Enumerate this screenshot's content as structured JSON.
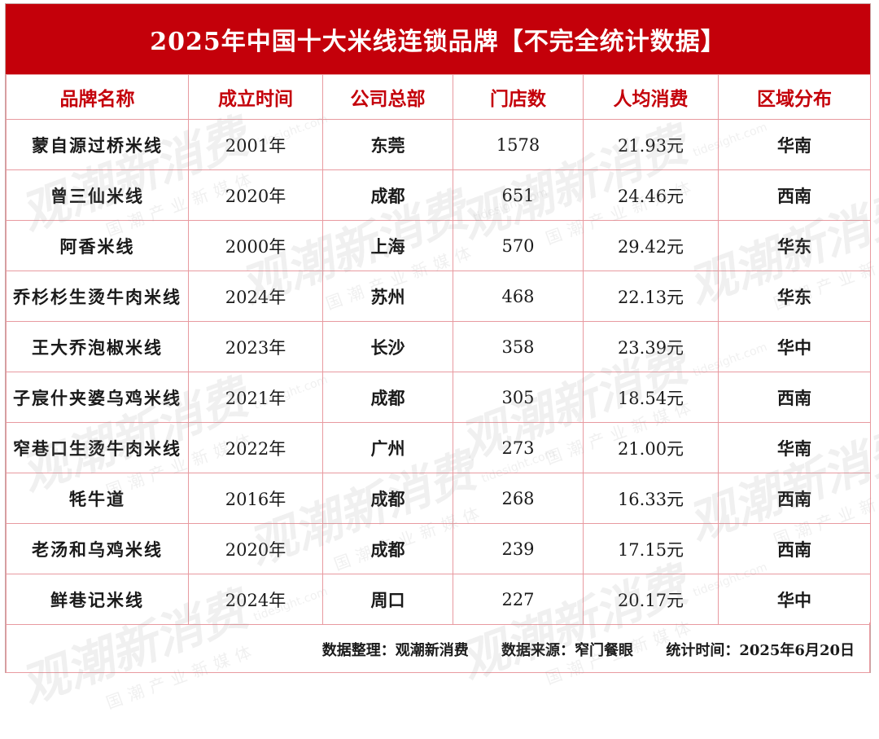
{
  "title": "2025年中国十大米线连锁品牌【不完全统计数据】",
  "columns": [
    "品牌名称",
    "成立时间",
    "公司总部",
    "门店数",
    "人均消费",
    "区域分布"
  ],
  "rows": [
    {
      "brand": "蒙自源过桥米线",
      "founded": "2001年",
      "hq": "东莞",
      "stores": "1578",
      "avg_spend": "21.93元",
      "region": "华南"
    },
    {
      "brand": "曾三仙米线",
      "founded": "2020年",
      "hq": "成都",
      "stores": "651",
      "avg_spend": "24.46元",
      "region": "西南"
    },
    {
      "brand": "阿香米线",
      "founded": "2000年",
      "hq": "上海",
      "stores": "570",
      "avg_spend": "29.42元",
      "region": "华东"
    },
    {
      "brand": "乔杉杉生烫牛肉米线",
      "founded": "2024年",
      "hq": "苏州",
      "stores": "468",
      "avg_spend": "22.13元",
      "region": "华东"
    },
    {
      "brand": "王大乔泡椒米线",
      "founded": "2023年",
      "hq": "长沙",
      "stores": "358",
      "avg_spend": "23.39元",
      "region": "华中"
    },
    {
      "brand": "子宸什夹婆乌鸡米线",
      "founded": "2021年",
      "hq": "成都",
      "stores": "305",
      "avg_spend": "18.54元",
      "region": "西南"
    },
    {
      "brand": "窄巷口生烫牛肉米线",
      "founded": "2022年",
      "hq": "广州",
      "stores": "273",
      "avg_spend": "21.00元",
      "region": "华南"
    },
    {
      "brand": "牦牛道",
      "founded": "2016年",
      "hq": "成都",
      "stores": "268",
      "avg_spend": "16.33元",
      "region": "西南"
    },
    {
      "brand": "老汤和乌鸡米线",
      "founded": "2020年",
      "hq": "成都",
      "stores": "239",
      "avg_spend": "17.15元",
      "region": "西南"
    },
    {
      "brand": "鲜巷记米线",
      "founded": "2024年",
      "hq": "周口",
      "stores": "227",
      "avg_spend": "20.17元",
      "region": "华中"
    }
  ],
  "footer": {
    "compiled_by": "数据整理：观潮新消费",
    "source": "数据来源：窄门餐眼",
    "stat_time": "统计时间：2025年6月20日"
  },
  "watermark": {
    "brand": "观潮新消费",
    "url": "tidesight.com",
    "tagline": "国潮产业新媒体"
  },
  "colors": {
    "title_bg": "#c4000a",
    "header_text": "#c4000a",
    "grid_line": "#e89aa0"
  }
}
